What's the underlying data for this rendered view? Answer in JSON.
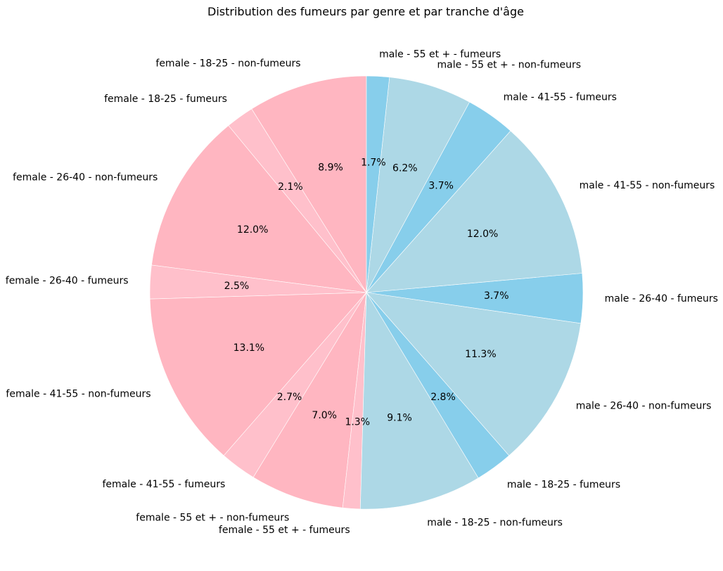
{
  "chart_data": {
    "type": "pie",
    "title": "Distribution des fumeurs par genre et par tranche d'âge",
    "start_angle_deg": 90,
    "direction": "counterclockwise",
    "slices": [
      {
        "label": "female - 18-25 - non-fumeurs",
        "value": 8.9,
        "pct_label": "8.9%",
        "color": "#FFB6C1"
      },
      {
        "label": "female - 18-25 - fumeurs",
        "value": 2.1,
        "pct_label": "2.1%",
        "color": "#FFC0CB"
      },
      {
        "label": "female - 26-40 - non-fumeurs",
        "value": 12.0,
        "pct_label": "12.0%",
        "color": "#FFB6C1"
      },
      {
        "label": "female - 26-40 - fumeurs",
        "value": 2.5,
        "pct_label": "2.5%",
        "color": "#FFC0CB"
      },
      {
        "label": "female - 41-55 - non-fumeurs",
        "value": 13.1,
        "pct_label": "13.1%",
        "color": "#FFB6C1"
      },
      {
        "label": "female - 41-55 - fumeurs",
        "value": 2.7,
        "pct_label": "2.7%",
        "color": "#FFC0CB"
      },
      {
        "label": "female - 55 et + - non-fumeurs",
        "value": 7.0,
        "pct_label": "7.0%",
        "color": "#FFB6C1"
      },
      {
        "label": "female - 55 et + - fumeurs",
        "value": 1.3,
        "pct_label": "1.3%",
        "color": "#FFC0CB"
      },
      {
        "label": "male - 18-25 - non-fumeurs",
        "value": 9.1,
        "pct_label": "9.1%",
        "color": "#ADD8E6"
      },
      {
        "label": "male - 18-25 - fumeurs",
        "value": 2.8,
        "pct_label": "2.8%",
        "color": "#87CEEB"
      },
      {
        "label": "male - 26-40 - non-fumeurs",
        "value": 11.3,
        "pct_label": "11.3%",
        "color": "#ADD8E6"
      },
      {
        "label": "male - 26-40 - fumeurs",
        "value": 3.7,
        "pct_label": "3.7%",
        "color": "#87CEEB"
      },
      {
        "label": "male - 41-55 - non-fumeurs",
        "value": 12.0,
        "pct_label": "12.0%",
        "color": "#ADD8E6"
      },
      {
        "label": "male - 41-55 - fumeurs",
        "value": 3.7,
        "pct_label": "3.7%",
        "color": "#87CEEB"
      },
      {
        "label": "male - 55 et + - non-fumeurs",
        "value": 6.2,
        "pct_label": "6.2%",
        "color": "#ADD8E6"
      },
      {
        "label": "male - 55 et + - fumeurs",
        "value": 1.7,
        "pct_label": "1.7%",
        "color": "#87CEEB"
      }
    ]
  }
}
